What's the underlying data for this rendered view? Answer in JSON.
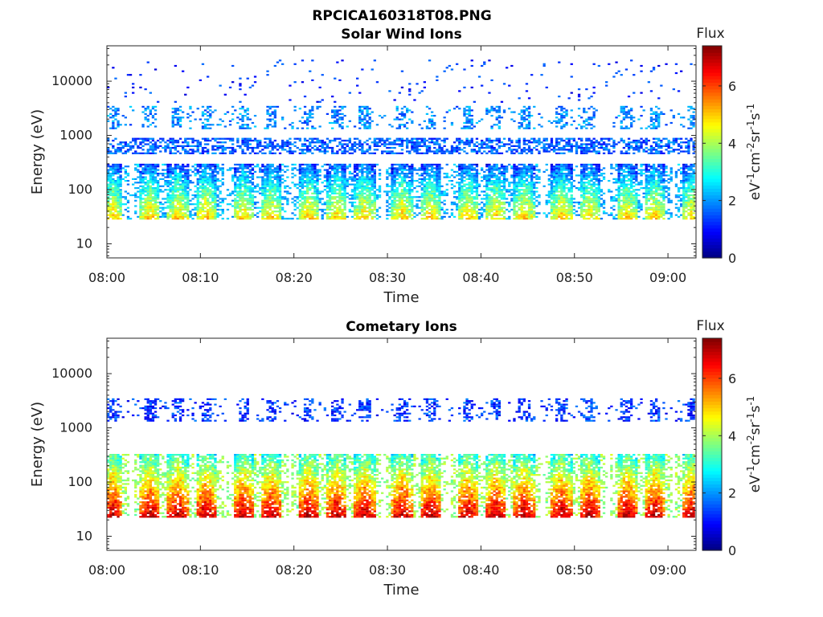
{
  "figure": {
    "title": "RPCICA160318T08.PNG"
  },
  "chart_data": [
    {
      "type": "heatmap",
      "title": "Solar Wind Ions",
      "xlabel": "Time",
      "ylabel": "Energy (eV)",
      "y_scale": "log",
      "ylim": [
        5.5,
        45000
      ],
      "xlim": [
        "08:00",
        "09:03"
      ],
      "x_ticks": [
        "08:00",
        "08:10",
        "08:20",
        "08:30",
        "08:40",
        "08:50",
        "09:00"
      ],
      "y_ticks": [
        "10",
        "100",
        "1000",
        "10000"
      ],
      "colorbar": {
        "label_top": "Flux",
        "units": "eV-1cm-2sr-1s-1",
        "range": [
          0,
          7.4
        ],
        "ticks": [
          "0",
          "2",
          "4",
          "6"
        ],
        "colormap": "jet"
      },
      "grid": false,
      "bands": [
        {
          "energy_range": [
            28,
            300
          ],
          "typical_flux": 2.8,
          "peak_flux": 5.2,
          "note": "periodic bursts ~3.4 min cadence"
        },
        {
          "energy_range": [
            450,
            900
          ],
          "typical_flux": 1.6
        },
        {
          "energy_range": [
            1300,
            3500
          ],
          "typical_flux": 1.9
        },
        {
          "energy_range": [
            4000,
            25000
          ],
          "typical_flux": 1.2
        }
      ],
      "burst_times": [
        "08:00",
        "08:04",
        "08:07",
        "08:10",
        "08:14",
        "08:17",
        "08:21",
        "08:24",
        "08:27",
        "08:31",
        "08:34",
        "08:38",
        "08:41",
        "08:44",
        "08:48",
        "08:51",
        "08:55",
        "08:58",
        "09:02"
      ]
    },
    {
      "type": "heatmap",
      "title": "Cometary Ions",
      "xlabel": "Time",
      "ylabel": "Energy (eV)",
      "y_scale": "log",
      "ylim": [
        5.5,
        45000
      ],
      "xlim": [
        "08:00",
        "09:03"
      ],
      "x_ticks": [
        "08:00",
        "08:10",
        "08:20",
        "08:30",
        "08:40",
        "08:50",
        "09:00"
      ],
      "y_ticks": [
        "10",
        "100",
        "1000",
        "10000"
      ],
      "colorbar": {
        "label_top": "Flux",
        "units": "eV-1cm-2sr-1s-1",
        "range": [
          0,
          7.4
        ],
        "ticks": [
          "0",
          "2",
          "4",
          "6"
        ],
        "colormap": "jet"
      },
      "grid": false,
      "bands": [
        {
          "energy_range": [
            22,
            330
          ],
          "typical_flux": 4.5,
          "peak_flux": 7.2,
          "note": "periodic bursts ~3.4 min cadence"
        },
        {
          "energy_range": [
            1300,
            3500
          ],
          "typical_flux": 1.3
        }
      ],
      "burst_times": [
        "08:00",
        "08:04",
        "08:07",
        "08:10",
        "08:14",
        "08:17",
        "08:21",
        "08:24",
        "08:27",
        "08:31",
        "08:34",
        "08:38",
        "08:41",
        "08:44",
        "08:48",
        "08:51",
        "08:55",
        "08:58",
        "09:02"
      ]
    }
  ]
}
